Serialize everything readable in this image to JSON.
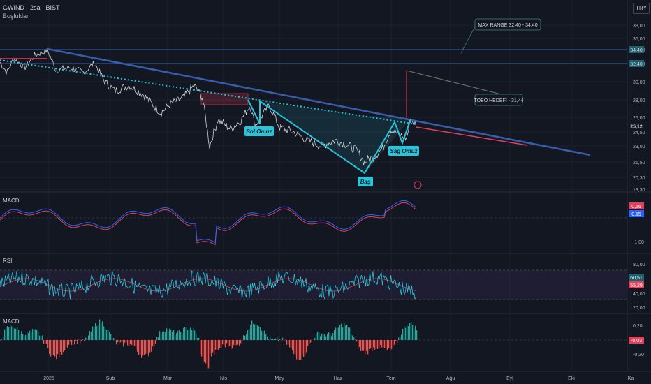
{
  "header": {
    "symbol_line": "GWIND · 2sa · BIST",
    "subtitle": "Boşluklar",
    "currency": "TRY"
  },
  "colors": {
    "background": "#131722",
    "grid": "#1e222d",
    "price_line": "#d1d4dc",
    "trend_blue": "#3a5dab",
    "cyan": "#26c6da",
    "red": "#e0405a",
    "macd_blue": "#2962ff",
    "rsi_purple": "#7e57c2",
    "hist_green": "#26a69a",
    "hist_red": "#ef5350"
  },
  "annotations": {
    "left_shoulder": "Sol Omuz",
    "head": "Baş",
    "right_shoulder": "Sağ Omuz",
    "max_range": "MAX RANGE 32,40 - 34,40",
    "target": "TOBO HEDEFİ - 31,44"
  },
  "chart_data": [
    {
      "type": "line",
      "title": "GWIND · 2sa · BIST",
      "currency": "TRY",
      "x_ticks": [
        "2025",
        "Şub",
        "Mar",
        "Nis",
        "May",
        "Haz",
        "Tem",
        "Ağu",
        "Eyl",
        "Eki",
        "Ka"
      ],
      "y_ticks": [
        19.3,
        20.3,
        21.5,
        23.0,
        24.5,
        26.0,
        28.0,
        30.0,
        32.4,
        34.4,
        36.0,
        38.0
      ],
      "y_tick_labels": [
        "19,30",
        "20,30",
        "21,50",
        "23,00",
        "24,50",
        "26,00",
        "28,00",
        "30,00",
        "32,40",
        "34,40",
        "36,00",
        "38,00"
      ],
      "current_price": "25,12",
      "horizontal_levels": [
        {
          "value": 34.4,
          "label": "34,40"
        },
        {
          "value": 32.4,
          "label": "32,40"
        }
      ],
      "key_points": {
        "start": 32.6,
        "high_early_jan": 34.3,
        "left_shoulder": 27.3,
        "head": 21.4,
        "right_shoulder": 24.8,
        "last": 25.12
      }
    },
    {
      "type": "line",
      "title": "MACD",
      "y_ticks": [
        0.16,
        0.15,
        -1.0
      ],
      "y_tick_labels": [
        "0,16",
        "0,15",
        "-1,00"
      ],
      "current": {
        "macd": "0,16",
        "signal": "0,15"
      }
    },
    {
      "type": "line",
      "title": "RSI",
      "y_ticks": [
        80,
        60.51,
        55.29,
        40,
        20
      ],
      "y_tick_labels": [
        "80,00",
        "60,51",
        "55,29",
        "40,00",
        "20,00"
      ],
      "bands": [
        70,
        30
      ],
      "current": {
        "rsi": "60,51",
        "ma": "55,29"
      }
    },
    {
      "type": "bar",
      "title": "MACD",
      "y_ticks": [
        0.2,
        0,
        -0.2
      ],
      "y_tick_labels": [
        "0,20",
        "0,00",
        "-0,20"
      ],
      "current": "-0,03"
    }
  ]
}
